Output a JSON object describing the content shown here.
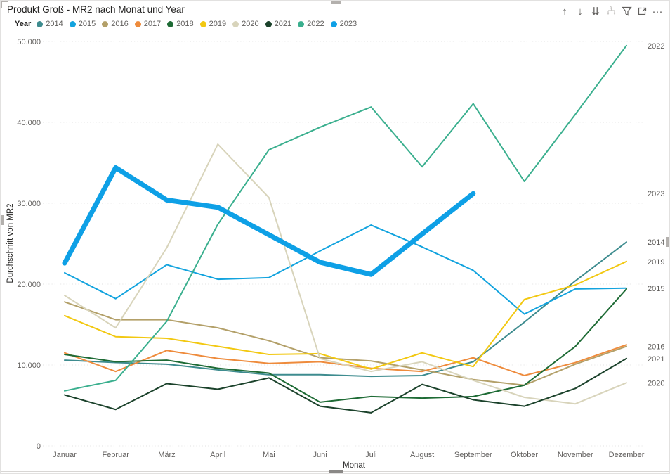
{
  "title": "Produkt Groß - MR2 nach Monat und Year",
  "toolbar": {
    "icons": [
      {
        "name": "drill-up-icon",
        "disabled": false
      },
      {
        "name": "drill-down-icon",
        "disabled": false
      },
      {
        "name": "go-to-next-level-icon",
        "disabled": false
      },
      {
        "name": "expand-all-icon",
        "disabled": true
      },
      {
        "name": "filter-icon",
        "disabled": false
      },
      {
        "name": "focus-mode-icon",
        "disabled": false
      },
      {
        "name": "more-options-icon",
        "disabled": false
      }
    ]
  },
  "legend": {
    "title": "Year",
    "items": [
      {
        "label": "2014",
        "color": "#3E8C8F"
      },
      {
        "label": "2015",
        "color": "#12A3DE"
      },
      {
        "label": "2016",
        "color": "#B3A069"
      },
      {
        "label": "2017",
        "color": "#EE8B3C"
      },
      {
        "label": "2018",
        "color": "#1E6B35"
      },
      {
        "label": "2019",
        "color": "#F2C811"
      },
      {
        "label": "2020",
        "color": "#D8D4BB"
      },
      {
        "label": "2021",
        "color": "#1B422B"
      },
      {
        "label": "2022",
        "color": "#3AAF8E"
      },
      {
        "label": "2023",
        "color": "#0EA0E6"
      }
    ]
  },
  "chart_data": {
    "type": "line",
    "title": "Produkt Groß - MR2 nach Monat und Year",
    "xlabel": "Monat",
    "ylabel": "Durchschnitt von MR2",
    "ylim": [
      0,
      50000
    ],
    "ytick_step": 10000,
    "ytick_labels": [
      "0",
      "10.000",
      "20.000",
      "30.000",
      "40.000",
      "50.000"
    ],
    "grid": "dotted-horizontal",
    "legend_position": "top",
    "categories": [
      "Januar",
      "Februar",
      "März",
      "April",
      "Mai",
      "Juni",
      "Juli",
      "August",
      "September",
      "Oktober",
      "November",
      "Dezember"
    ],
    "series": [
      {
        "name": "2014",
        "color": "#3E8C8F",
        "values": [
          10600,
          10300,
          10100,
          9400,
          8800,
          8800,
          8600,
          8700,
          10400,
          15300,
          20400,
          25200
        ]
      },
      {
        "name": "2015",
        "color": "#12A3DE",
        "values": [
          21400,
          18200,
          22400,
          20600,
          20800,
          24100,
          27300,
          24600,
          21700,
          16300,
          19400,
          19500
        ]
      },
      {
        "name": "2016",
        "color": "#B3A069",
        "values": [
          17800,
          15600,
          15600,
          14600,
          13000,
          10900,
          10500,
          9400,
          8200,
          7500,
          10100,
          12300
        ]
      },
      {
        "name": "2017",
        "color": "#EE8B3C",
        "values": [
          11500,
          9200,
          11800,
          10800,
          10200,
          10400,
          9600,
          9200,
          10900,
          8700,
          10300,
          12500
        ]
      },
      {
        "name": "2018",
        "color": "#1E6B35",
        "values": [
          11300,
          10400,
          10600,
          9600,
          9000,
          5400,
          6100,
          5900,
          6100,
          7500,
          12300,
          19400
        ]
      },
      {
        "name": "2019",
        "color": "#F2C811",
        "values": [
          16100,
          13500,
          13300,
          12300,
          11300,
          11400,
          9500,
          11500,
          9800,
          18100,
          19900,
          22800
        ]
      },
      {
        "name": "2020",
        "color": "#D8D4BB",
        "values": [
          18600,
          14600,
          24500,
          37300,
          30700,
          10800,
          9200,
          10400,
          8100,
          6000,
          5200,
          7800
        ]
      },
      {
        "name": "2021",
        "color": "#1B422B",
        "values": [
          6300,
          4500,
          7700,
          7000,
          8400,
          4900,
          4100,
          7600,
          5700,
          4900,
          7100,
          10800
        ]
      },
      {
        "name": "2022",
        "color": "#3AAF8E",
        "values": [
          6800,
          8100,
          15400,
          27400,
          36600,
          39400,
          41900,
          34500,
          42300,
          32700,
          41000,
          49500
        ]
      },
      {
        "name": "2023",
        "color": "#0EA0E6",
        "values": [
          22600,
          34400,
          30400,
          29500,
          26100,
          22700,
          21200,
          26200,
          31200
        ]
      }
    ],
    "thick_series": "2023",
    "right_label_years": [
      "2022",
      "2023",
      "2014",
      "2019",
      "2015",
      "2016",
      "2021",
      "2020"
    ]
  }
}
